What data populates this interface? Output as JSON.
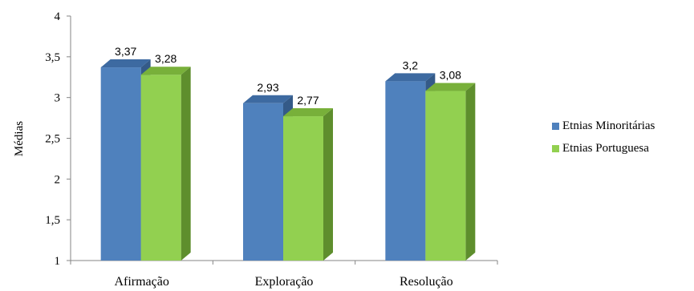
{
  "chart_data": {
    "type": "bar",
    "categories": [
      "Afirmação",
      "Exploração",
      "Resolução"
    ],
    "series": [
      {
        "name": "Etnias Minoritárias",
        "values": [
          3.37,
          2.93,
          3.2
        ],
        "labels": [
          "3,37",
          "2,93",
          "3,2"
        ],
        "color": "#4F81BD"
      },
      {
        "name": "Etnias Portuguesa",
        "values": [
          3.28,
          2.77,
          3.08
        ],
        "labels": [
          "3,28",
          "2,77",
          "3,08"
        ],
        "color": "#92D050"
      }
    ],
    "ylabel": "Médias",
    "ylim": [
      1,
      4
    ],
    "yticks": [
      1,
      1.5,
      2,
      2.5,
      3,
      3.5,
      4
    ],
    "ytick_labels": [
      "1",
      "1,5",
      "2",
      "2,5",
      "3",
      "3,5",
      "4"
    ],
    "grid": false,
    "legend": "right"
  }
}
